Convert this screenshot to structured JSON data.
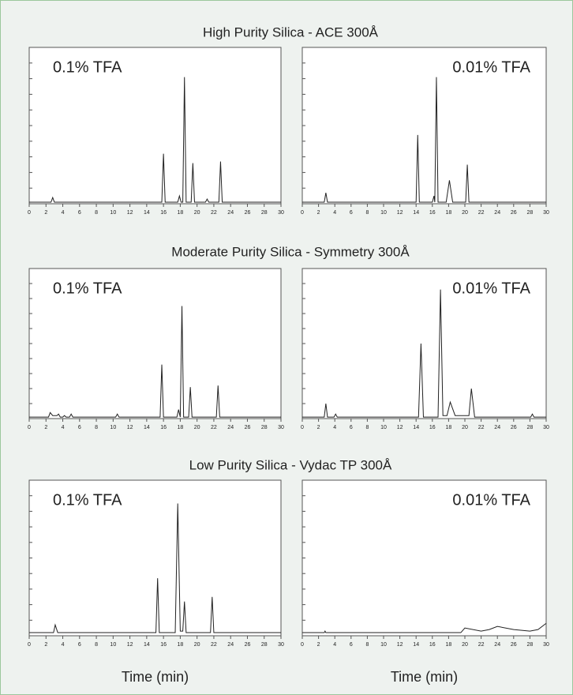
{
  "sections": [
    "High Purity Silica - ACE 300Å",
    "Moderate Purity Silica - Symmetry 300Å",
    "Low Purity Silica - Vydac TP 300Å"
  ],
  "chart_data": [
    {
      "type": "line",
      "title": "0.1% TFA",
      "color": "#222222",
      "x": [
        0,
        2.6,
        2.8,
        3.0,
        15.8,
        16.0,
        16.2,
        17.7,
        17.9,
        18.1,
        18.3,
        18.5,
        18.7,
        19.3,
        19.5,
        19.7,
        21.0,
        21.2,
        21.4,
        22.6,
        22.8,
        23.0,
        30
      ],
      "values": [
        1,
        1,
        4,
        1,
        1,
        32,
        1,
        1,
        5,
        1,
        1,
        81,
        1,
        1,
        26,
        1,
        1,
        3,
        1,
        1,
        27,
        1,
        1
      ],
      "xlim": [
        0,
        30
      ],
      "xticks": [
        0,
        2,
        4,
        6,
        8,
        10,
        12,
        14,
        16,
        18,
        20,
        22,
        24,
        26,
        28,
        30
      ],
      "ylim": [
        0,
        100
      ],
      "yticks": [
        0,
        10,
        20,
        30,
        40,
        50,
        60,
        70,
        80,
        90,
        100
      ]
    },
    {
      "type": "line",
      "title": "0.01% TFA",
      "color": "#222222",
      "x": [
        0,
        2.7,
        2.9,
        3.1,
        14.0,
        14.2,
        14.4,
        16.0,
        16.2,
        16.3,
        16.5,
        16.7,
        17.7,
        18.1,
        18.5,
        20.1,
        20.3,
        20.5,
        30
      ],
      "values": [
        1,
        1,
        7,
        1,
        1,
        44,
        1,
        1,
        5,
        1,
        81,
        1,
        1,
        15,
        1,
        1,
        25,
        1,
        1
      ],
      "xlim": [
        0,
        30
      ],
      "xticks": [
        0,
        2,
        4,
        6,
        8,
        10,
        12,
        14,
        16,
        18,
        20,
        22,
        24,
        26,
        28,
        30
      ],
      "ylim": [
        0,
        100
      ],
      "yticks": [
        0,
        10,
        20,
        30,
        40,
        50,
        60,
        70,
        80,
        90,
        100
      ]
    },
    {
      "type": "line",
      "title": "0.1% TFA",
      "color": "#222222",
      "x": [
        0,
        2.3,
        2.5,
        2.8,
        3.3,
        3.5,
        3.7,
        4.0,
        4.2,
        4.4,
        4.8,
        5.0,
        5.2,
        10.3,
        10.5,
        10.7,
        15.6,
        15.8,
        16.0,
        17.6,
        17.8,
        18.0,
        18.2,
        18.4,
        19.0,
        19.2,
        19.4,
        22.3,
        22.5,
        22.7,
        30
      ],
      "values": [
        1,
        1,
        4,
        2,
        2,
        3,
        1,
        1,
        2,
        1,
        1,
        3,
        1,
        1,
        3,
        1,
        1,
        36,
        1,
        1,
        6,
        1,
        75,
        1,
        1,
        21,
        1,
        1,
        22,
        1,
        1
      ],
      "xlim": [
        0,
        30
      ],
      "xticks": [
        0,
        2,
        4,
        6,
        8,
        10,
        12,
        14,
        16,
        18,
        20,
        22,
        24,
        26,
        28,
        30
      ],
      "ylim": [
        0,
        100
      ],
      "yticks": [
        0,
        10,
        20,
        30,
        40,
        50,
        60,
        70,
        80,
        90,
        100
      ]
    },
    {
      "type": "line",
      "title": "0.01% TFA",
      "color": "#222222",
      "x": [
        0,
        2.7,
        2.9,
        3.1,
        3.9,
        4.1,
        4.3,
        14.3,
        14.6,
        14.9,
        16.7,
        17.0,
        17.3,
        17.8,
        18.2,
        18.8,
        20.5,
        20.8,
        21.2,
        28.1,
        28.3,
        28.5,
        30
      ],
      "values": [
        1,
        1,
        10,
        1,
        1,
        3,
        1,
        1,
        50,
        1,
        1,
        86,
        2,
        2,
        11,
        2,
        2,
        20,
        1,
        1,
        3,
        1,
        1
      ],
      "xlim": [
        0,
        30
      ],
      "xticks": [
        0,
        2,
        4,
        6,
        8,
        10,
        12,
        14,
        16,
        18,
        20,
        22,
        24,
        26,
        28,
        30
      ],
      "ylim": [
        0,
        100
      ],
      "yticks": [
        0,
        10,
        20,
        30,
        40,
        50,
        60,
        70,
        80,
        90,
        100
      ]
    },
    {
      "type": "line",
      "title": "0.1% TFA",
      "color": "#222222",
      "xlabel": "Time (min)",
      "x": [
        0,
        2.9,
        3.1,
        3.4,
        15.1,
        15.3,
        15.5,
        17.4,
        17.7,
        18.0,
        18.3,
        18.5,
        18.7,
        21.6,
        21.8,
        22.0,
        30
      ],
      "values": [
        2,
        2,
        7,
        2,
        2,
        37,
        2,
        2,
        85,
        3,
        3,
        22,
        2,
        2,
        25,
        2,
        2
      ],
      "xlim": [
        0,
        30
      ],
      "xticks": [
        0,
        2,
        4,
        6,
        8,
        10,
        12,
        14,
        16,
        18,
        20,
        22,
        24,
        26,
        28,
        30
      ],
      "ylim": [
        0,
        100
      ],
      "yticks": [
        0,
        10,
        20,
        30,
        40,
        50,
        60,
        70,
        80,
        90,
        100
      ]
    },
    {
      "type": "line",
      "title": "0.01% TFA",
      "color": "#222222",
      "xlabel": "Time (min)",
      "x": [
        0,
        2.7,
        2.8,
        2.9,
        10,
        19.5,
        20,
        22,
        23,
        24,
        26,
        28,
        29,
        30
      ],
      "values": [
        2,
        2,
        3,
        2,
        2,
        2,
        5,
        3,
        4,
        6,
        4,
        3,
        4,
        8
      ],
      "xlim": [
        0,
        30
      ],
      "xticks": [
        0,
        2,
        4,
        6,
        8,
        10,
        12,
        14,
        16,
        18,
        20,
        22,
        24,
        26,
        28,
        30
      ],
      "ylim": [
        0,
        100
      ],
      "yticks": [
        0,
        10,
        20,
        30,
        40,
        50,
        60,
        70,
        80,
        90,
        100
      ]
    }
  ]
}
